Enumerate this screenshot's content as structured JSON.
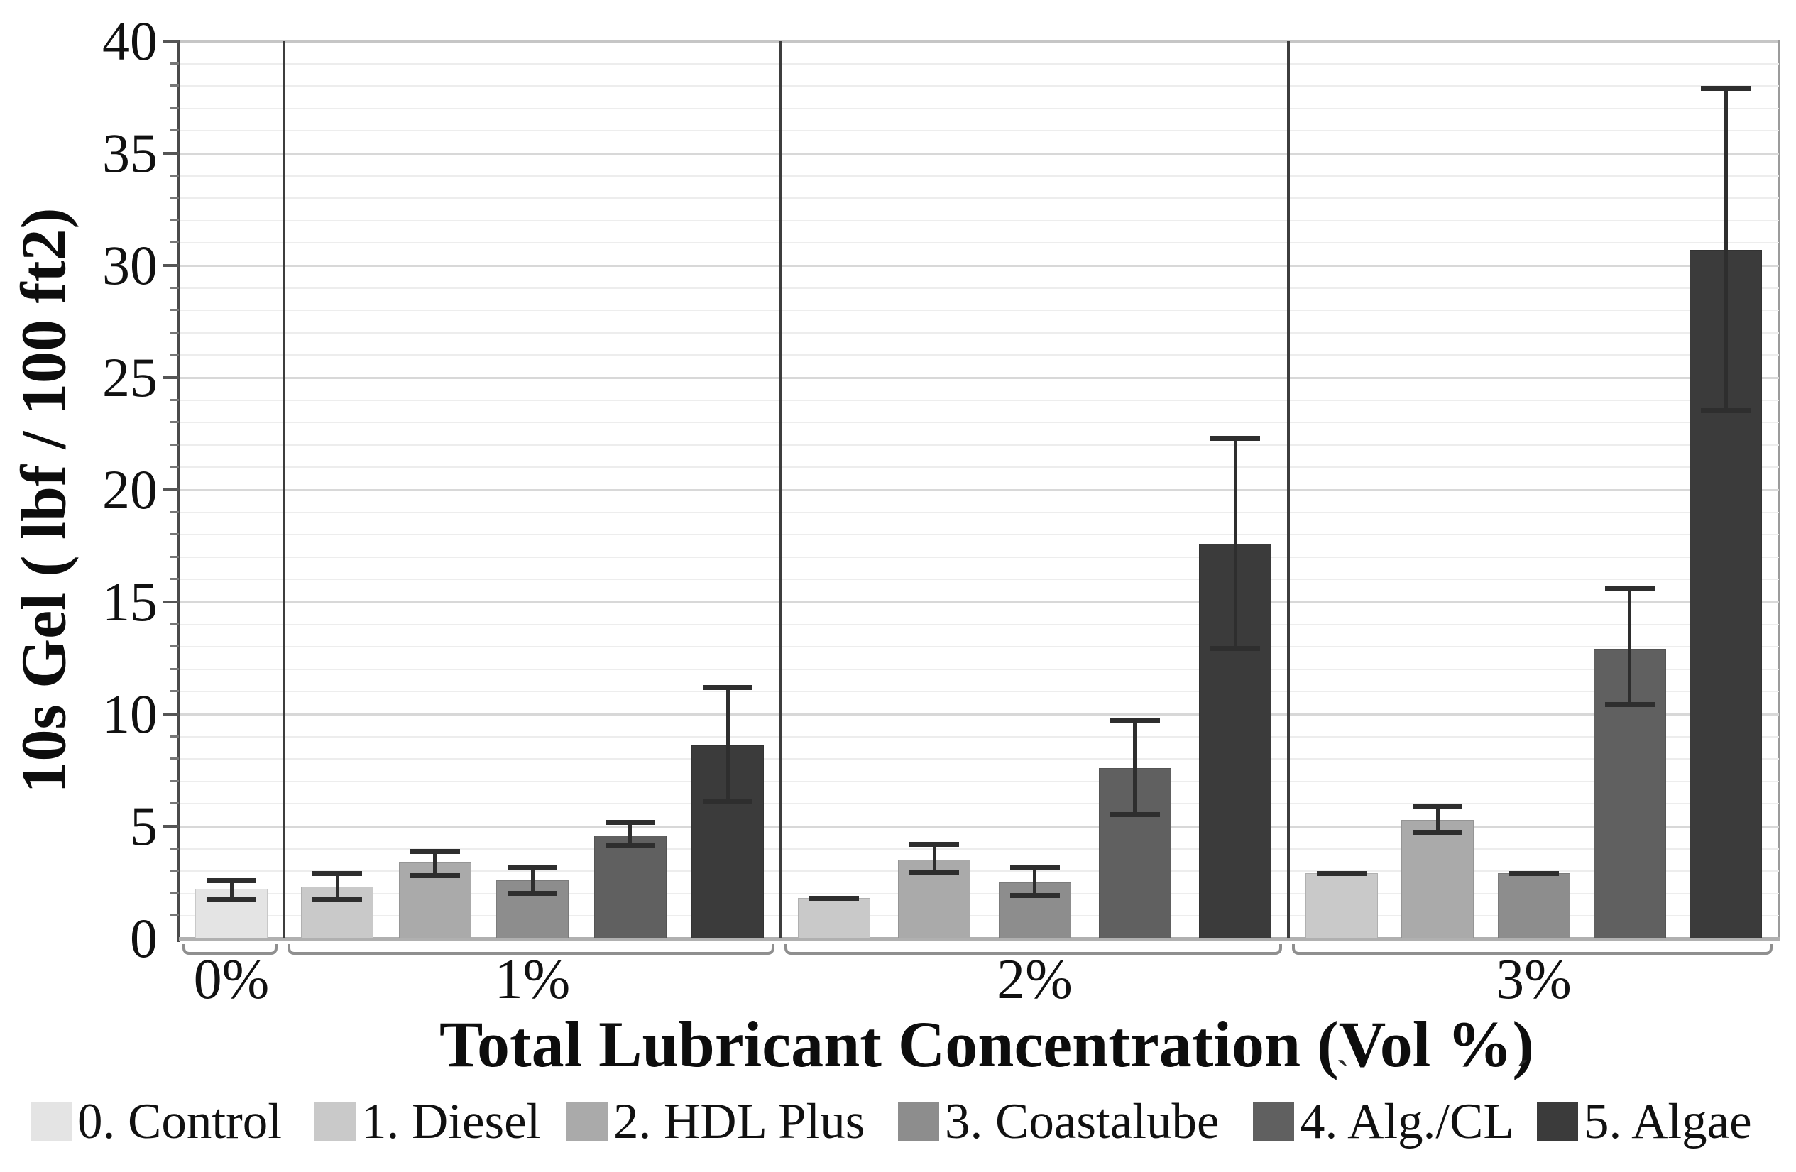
{
  "chart_data": {
    "type": "bar",
    "title": "",
    "xlabel": "Total Lubricant Concentration (Vol %)",
    "ylabel": "10s Gel ( lbf / 100 ft2)",
    "ylim": [
      0,
      40
    ],
    "y_major_tick_step": 5,
    "y_minor_tick_step": 1,
    "y_tick_labels": [
      "0",
      "5",
      "10",
      "15",
      "20",
      "25",
      "30",
      "35",
      "40"
    ],
    "grid": "horizontal, minor every 1 unit (very light), major every 5 units (light gray)",
    "legend_position": "bottom",
    "group_axis_tick_labels": [
      "0%",
      "1%",
      "2%",
      "3%"
    ],
    "series": [
      {
        "name": "0. Control",
        "color": "#e4e4e4"
      },
      {
        "name": "1. Diesel",
        "color": "#c9c9c9"
      },
      {
        "name": "2. HDL Plus",
        "color": "#aaaaaa"
      },
      {
        "name": "3. Coastalube",
        "color": "#8d8d8d"
      },
      {
        "name": "4. Alg./CL",
        "color": "#606060"
      },
      {
        "name": "5. Algae",
        "color": "#3b3b3b"
      }
    ],
    "groups": [
      {
        "label": "0%",
        "bars": [
          {
            "series": "0. Control",
            "value": 2.2,
            "err_low": 1.7,
            "err_high": 2.6
          }
        ]
      },
      {
        "label": "1%",
        "bars": [
          {
            "series": "1. Diesel",
            "value": 2.3,
            "err_low": 1.7,
            "err_high": 2.9
          },
          {
            "series": "2. HDL Plus",
            "value": 3.4,
            "err_low": 2.8,
            "err_high": 3.9
          },
          {
            "series": "3. Coastalube",
            "value": 2.6,
            "err_low": 2.0,
            "err_high": 3.2
          },
          {
            "series": "4. Alg./CL",
            "value": 4.6,
            "err_low": 4.1,
            "err_high": 5.2
          },
          {
            "series": "5. Algae",
            "value": 8.6,
            "err_low": 6.1,
            "err_high": 11.2
          }
        ]
      },
      {
        "label": "2%",
        "bars": [
          {
            "series": "1. Diesel",
            "value": 1.8,
            "err_low": 1.8,
            "err_high": 1.8
          },
          {
            "series": "2. HDL Plus",
            "value": 3.5,
            "err_low": 2.9,
            "err_high": 4.2
          },
          {
            "series": "3. Coastalube",
            "value": 2.5,
            "err_low": 1.9,
            "err_high": 3.2
          },
          {
            "series": "4. Alg./CL",
            "value": 7.6,
            "err_low": 5.5,
            "err_high": 9.7
          },
          {
            "series": "5. Algae",
            "value": 17.6,
            "err_low": 12.9,
            "err_high": 22.3
          }
        ]
      },
      {
        "label": "3%",
        "bars": [
          {
            "series": "1. Diesel",
            "value": 2.9,
            "err_low": 2.9,
            "err_high": 2.9
          },
          {
            "series": "2. HDL Plus",
            "value": 5.3,
            "err_low": 4.7,
            "err_high": 5.9
          },
          {
            "series": "3. Coastalube",
            "value": 2.9,
            "err_low": 2.9,
            "err_high": 2.9
          },
          {
            "series": "4. Alg./CL",
            "value": 12.9,
            "err_low": 10.4,
            "err_high": 15.6
          },
          {
            "series": "5. Algae",
            "value": 30.7,
            "err_low": 23.5,
            "err_high": 37.9
          }
        ]
      }
    ],
    "annotation_marks": [
      "`",
      "´"
    ],
    "colors": {
      "error_bar": "#2e2e2e",
      "axis_line": "#4a4a4a",
      "baseline": "#b0b0b0",
      "separator": "#3d3d3d",
      "grid_minor": "#ededed",
      "grid_major": "#d8d8d8",
      "bracket": "#8f8f8f",
      "background": "#ffffff"
    }
  }
}
